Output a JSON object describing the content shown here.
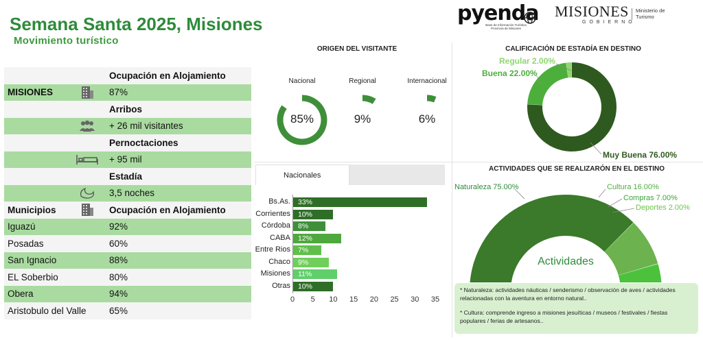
{
  "header": {
    "title": "Semana Santa 2025, Misiones",
    "subtitle": "Movimiento turístico",
    "logo_pyenda": "pyenda",
    "logo_pyenda_sub": "Base de Información Turística Provincia de Misiones",
    "logo_misiones": "MISIONES",
    "logo_misiones_sub": "GOBIERNO",
    "logo_ministerio": "Ministerio de Turismo"
  },
  "summary": {
    "rows": [
      {
        "label": "",
        "icon": "",
        "value": "Ocupación en Alojamiento",
        "style": "white",
        "bold": true
      },
      {
        "label": "MISIONES",
        "icon": "building-icon",
        "value": "87%",
        "style": "green",
        "bold": false
      },
      {
        "label": "",
        "icon": "",
        "value": "Arribos",
        "style": "white",
        "bold": true
      },
      {
        "label": "",
        "icon": "group-icon",
        "value": "+ 26 mil visitantes",
        "style": "green",
        "bold": false
      },
      {
        "label": "",
        "icon": "",
        "value": "Pernoctaciones",
        "style": "white",
        "bold": true
      },
      {
        "label": "",
        "icon": "bed-icon",
        "value": "+ 95 mil",
        "style": "green",
        "bold": false
      },
      {
        "label": "",
        "icon": "",
        "value": "Estadía",
        "style": "white",
        "bold": true
      },
      {
        "label": "",
        "icon": "moon-icon",
        "value": "3,5 noches",
        "style": "green",
        "bold": false
      }
    ]
  },
  "municipios": {
    "header_label": "Municipios",
    "header_value": "Ocupación en Alojamiento",
    "rows": [
      {
        "name": "Iguazú",
        "value": "92%",
        "style": "green"
      },
      {
        "name": "Posadas",
        "value": "60%",
        "style": "white"
      },
      {
        "name": "San Ignacio",
        "value": "88%",
        "style": "green"
      },
      {
        "name": "EL Soberbio",
        "value": "80%",
        "style": "white"
      },
      {
        "name": "Obera",
        "value": "94%",
        "style": "green"
      },
      {
        "name": "Aristobulo del Valle",
        "value": "65%",
        "style": "white"
      }
    ]
  },
  "colors": {
    "dark_green": "#2f6e27",
    "mid_green": "#3f8f3a",
    "light_green": "#5fbf4a",
    "pale_green": "#a9dba0"
  },
  "chart_data": [
    {
      "type": "pie",
      "title": "ORIGEN DEL VISITANTE",
      "series": [
        {
          "name": "Nacional",
          "value": 85,
          "label": "85%"
        },
        {
          "name": "Regional",
          "value": 9,
          "label": "9%"
        },
        {
          "name": "Internacional",
          "value": 6,
          "label": "6%"
        }
      ]
    },
    {
      "type": "pie",
      "title": "CALIFICACIÓN DE ESTADÍA EN DESTINO",
      "categories": [
        "Muy Buena",
        "Buena",
        "Regular"
      ],
      "values": [
        76.0,
        22.0,
        2.0
      ],
      "labels": [
        "Muy Buena 76.00%",
        "Buena 22.00%",
        "Regular 2.00%"
      ],
      "colors": [
        "#2f5a1f",
        "#4caf3c",
        "#8fd66f"
      ]
    },
    {
      "type": "bar",
      "title": "Nacionales",
      "categories": [
        "Bs.As.",
        "Corrientes",
        "Córdoba",
        "CABA",
        "Entre Rios",
        "Chaco",
        "Misiones",
        "Otras"
      ],
      "values": [
        33,
        10,
        8,
        12,
        7,
        9,
        11,
        10
      ],
      "value_labels": [
        "33%",
        "10%",
        "8%",
        "12%",
        "7%",
        "9%",
        "11%",
        "10%"
      ],
      "colors": [
        "#2f6e27",
        "#2f6e27",
        "#3f8f3a",
        "#4fa83e",
        "#5fbf4a",
        "#6fcf5a",
        "#5fcf6a",
        "#2f6e27"
      ],
      "xlim": [
        0,
        35
      ],
      "xticks": [
        "0",
        "5",
        "10",
        "15",
        "20",
        "25",
        "30",
        "35"
      ]
    },
    {
      "type": "pie",
      "title": "ACTIVIDADES QUE SE REALIZARÓN EN EL DESTINO",
      "center_label": "Actividades",
      "categories": [
        "Naturaleza",
        "Cultura",
        "Compras",
        "Deportes"
      ],
      "values": [
        75.0,
        16.0,
        7.0,
        2.0
      ],
      "labels": [
        "Naturaleza 75.00%",
        "Cultura 16.00%",
        "Compras 7.00%",
        "Deportes 2.00%"
      ],
      "colors": [
        "#3a7a2a",
        "#6cb24e",
        "#4cc23c",
        "#8fd66f"
      ]
    }
  ],
  "notes": {
    "naturaleza": "* Naturaleza: actividades náuticas / senderismo / observación de aves / actividades relacionadas con la aventura en entorno natural..",
    "cultura": "* Cultura: comprende ingreso a misiones jesuíticas / museos / festivales / fiestas populares / ferias de artesanos.."
  }
}
